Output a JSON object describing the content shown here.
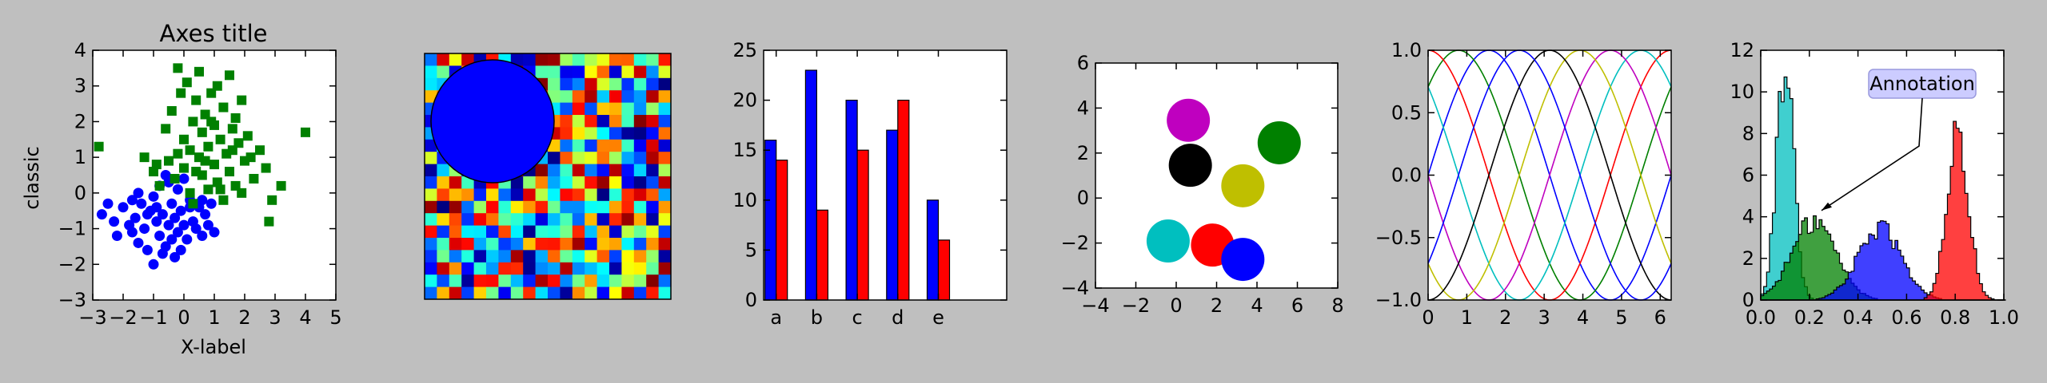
{
  "figure": {
    "background": "#bfbfbf"
  },
  "chart_data": [
    {
      "type": "scatter",
      "title": "Axes title",
      "xlabel": "X-label",
      "ylabel": "classic",
      "xlim": [
        -3,
        5
      ],
      "ylim": [
        -3,
        4
      ],
      "xticks": [
        "−3",
        "−2",
        "−1",
        "0",
        "1",
        "2",
        "3",
        "4",
        "5"
      ],
      "yticks": [
        "−3",
        "−2",
        "−1",
        "0",
        "1",
        "2",
        "3",
        "4"
      ],
      "grid": false,
      "series": [
        {
          "marker": "circle",
          "color": "#0000ff",
          "points": [
            [
              -2.7,
              -0.6
            ],
            [
              -2.3,
              -0.8
            ],
            [
              -2.2,
              -1.2
            ],
            [
              -2.0,
              -0.4
            ],
            [
              -1.8,
              -0.9
            ],
            [
              -1.7,
              -0.2
            ],
            [
              -1.6,
              -0.7
            ],
            [
              -1.5,
              -1.4
            ],
            [
              -1.4,
              -0.3
            ],
            [
              -1.3,
              -1.0
            ],
            [
              -1.2,
              -1.6
            ],
            [
              -1.1,
              -0.5
            ],
            [
              -1.0,
              -2.0
            ],
            [
              -1.0,
              -0.1
            ],
            [
              -0.9,
              -0.8
            ],
            [
              -0.8,
              -1.2
            ],
            [
              -0.8,
              0.2
            ],
            [
              -0.7,
              -0.6
            ],
            [
              -0.6,
              -1.5
            ],
            [
              -0.6,
              0.5
            ],
            [
              -0.5,
              -0.9
            ],
            [
              -0.4,
              -0.3
            ],
            [
              -0.4,
              -1.3
            ],
            [
              -0.3,
              -0.7
            ],
            [
              -0.2,
              0.1
            ],
            [
              -0.2,
              -1.1
            ],
            [
              -0.1,
              -0.5
            ],
            [
              0.0,
              -0.9
            ],
            [
              0.0,
              0.4
            ],
            [
              0.1,
              -1.3
            ],
            [
              0.2,
              -0.2
            ],
            [
              0.3,
              -0.8
            ],
            [
              0.4,
              -1.0
            ],
            [
              0.5,
              -0.4
            ],
            [
              0.6,
              -1.2
            ],
            [
              0.7,
              -0.6
            ],
            [
              0.8,
              -0.9
            ],
            [
              0.9,
              -0.3
            ],
            [
              1.0,
              -1.1
            ],
            [
              -1.5,
              0.0
            ],
            [
              -0.9,
              -0.4
            ],
            [
              -0.3,
              -1.8
            ],
            [
              -1.2,
              -0.6
            ],
            [
              0.2,
              -0.4
            ],
            [
              -0.5,
              0.3
            ],
            [
              -1.7,
              -1.1
            ],
            [
              -0.1,
              -1.6
            ],
            [
              0.6,
              -0.2
            ],
            [
              -2.5,
              -0.3
            ],
            [
              -0.7,
              -1.7
            ]
          ]
        },
        {
          "marker": "square",
          "color": "#008000",
          "points": [
            [
              -2.8,
              1.3
            ],
            [
              -1.3,
              1.0
            ],
            [
              -1.0,
              0.6
            ],
            [
              -0.8,
              0.2
            ],
            [
              -0.6,
              1.8
            ],
            [
              -0.5,
              0.9
            ],
            [
              -0.4,
              2.3
            ],
            [
              -0.3,
              0.4
            ],
            [
              -0.2,
              3.5
            ],
            [
              -0.1,
              2.8
            ],
            [
              0.0,
              1.5
            ],
            [
              0.0,
              0.7
            ],
            [
              0.1,
              3.1
            ],
            [
              0.2,
              1.2
            ],
            [
              0.3,
              2.0
            ],
            [
              0.3,
              -0.3
            ],
            [
              0.4,
              2.6
            ],
            [
              0.5,
              1.0
            ],
            [
              0.5,
              3.4
            ],
            [
              0.6,
              0.5
            ],
            [
              0.6,
              1.7
            ],
            [
              0.7,
              2.2
            ],
            [
              0.8,
              0.1
            ],
            [
              0.8,
              1.3
            ],
            [
              0.9,
              2.8
            ],
            [
              1.0,
              0.8
            ],
            [
              1.0,
              1.9
            ],
            [
              1.1,
              3.0
            ],
            [
              1.1,
              0.3
            ],
            [
              1.2,
              1.5
            ],
            [
              1.3,
              2.4
            ],
            [
              1.3,
              -0.2
            ],
            [
              1.4,
              1.1
            ],
            [
              1.5,
              3.3
            ],
            [
              1.5,
              0.6
            ],
            [
              1.6,
              1.8
            ],
            [
              1.7,
              2.1
            ],
            [
              1.7,
              0.2
            ],
            [
              1.8,
              1.4
            ],
            [
              1.9,
              2.6
            ],
            [
              2.0,
              0.9
            ],
            [
              2.1,
              1.6
            ],
            [
              2.3,
              0.4
            ],
            [
              2.5,
              1.2
            ],
            [
              2.7,
              0.7
            ],
            [
              2.9,
              -0.2
            ],
            [
              3.2,
              0.2
            ],
            [
              4.0,
              1.7
            ],
            [
              2.8,
              -0.8
            ],
            [
              1.2,
              0.1
            ],
            [
              0.4,
              0.6
            ],
            [
              -0.2,
              1.1
            ],
            [
              1.9,
              0.0
            ],
            [
              0.9,
              2.0
            ],
            [
              2.2,
              1.0
            ],
            [
              -0.9,
              0.8
            ],
            [
              1.6,
              1.2
            ],
            [
              0.7,
              0.9
            ],
            [
              0.2,
              0.0
            ]
          ]
        }
      ]
    },
    {
      "type": "heatmap",
      "colormap": "jet",
      "grid_size": [
        20,
        20
      ],
      "seed": 7,
      "overlay_circle": {
        "color": "#0000ff"
      }
    },
    {
      "type": "bar",
      "categories": [
        "a",
        "b",
        "c",
        "d",
        "e"
      ],
      "ylim": [
        0,
        25
      ],
      "yticks": [
        "0",
        "5",
        "10",
        "15",
        "20",
        "25"
      ],
      "series": [
        {
          "color": "#0000ff",
          "values": [
            16,
            23,
            20,
            17,
            10
          ]
        },
        {
          "color": "#ff0000",
          "values": [
            14,
            9,
            15,
            20,
            6
          ]
        }
      ]
    },
    {
      "type": "scatter",
      "xlim": [
        -4,
        8
      ],
      "ylim": [
        -5,
        6
      ],
      "xticks": [
        "−4",
        "−2",
        "0",
        "2",
        "4",
        "6",
        "8"
      ],
      "yticks": [
        "−4",
        "−2",
        "0",
        "2",
        "4",
        "6"
      ],
      "circles": [
        {
          "x": 0.6,
          "y": 3.2,
          "color": "#bf00bf"
        },
        {
          "x": 5.1,
          "y": 2.1,
          "color": "#008000"
        },
        {
          "x": 0.7,
          "y": 1.0,
          "color": "#000000"
        },
        {
          "x": 3.3,
          "y": 0.0,
          "color": "#bfbf00"
        },
        {
          "x": -0.4,
          "y": -2.7,
          "color": "#00bfbf"
        },
        {
          "x": 1.8,
          "y": -2.9,
          "color": "#ff0000"
        },
        {
          "x": 3.3,
          "y": -3.6,
          "color": "#0000ff"
        }
      ]
    },
    {
      "type": "line",
      "xlim": [
        0,
        6.283
      ],
      "ylim": [
        -1,
        1
      ],
      "xticks": [
        "0",
        "1",
        "2",
        "3",
        "4",
        "5",
        "6"
      ],
      "yticks": [
        "−1.0",
        "−0.5",
        "0.0",
        "0.5",
        "1.0"
      ],
      "function": "sin(x + phase)",
      "series": [
        {
          "phase": 0.0,
          "color": "#0000ff"
        },
        {
          "phase": 0.785,
          "color": "#008000"
        },
        {
          "phase": 1.571,
          "color": "#ff0000"
        },
        {
          "phase": 2.356,
          "color": "#00bfbf"
        },
        {
          "phase": 3.142,
          "color": "#bf00bf"
        },
        {
          "phase": 3.927,
          "color": "#bfbf00"
        },
        {
          "phase": 4.712,
          "color": "#000000"
        },
        {
          "phase": 5.498,
          "color": "#0000ff"
        }
      ]
    },
    {
      "type": "area",
      "subtype": "histogram",
      "xlim": [
        0,
        1
      ],
      "ylim": [
        0,
        12
      ],
      "xticks": [
        "0.0",
        "0.2",
        "0.4",
        "0.6",
        "0.8",
        "1.0"
      ],
      "yticks": [
        "0",
        "2",
        "4",
        "6",
        "8",
        "10",
        "12"
      ],
      "series": [
        {
          "color": "#00bfbf",
          "mean": 0.1,
          "sd": 0.035,
          "peak": 11.5
        },
        {
          "color": "#008000",
          "mean": 0.22,
          "sd": 0.09,
          "peak": 3.8
        },
        {
          "color": "#0000ff",
          "mean": 0.49,
          "sd": 0.09,
          "peak": 3.4
        },
        {
          "color": "#ff0000",
          "mean": 0.81,
          "sd": 0.045,
          "peak": 8.0
        }
      ],
      "annotation": {
        "text": "Annotation",
        "x": 0.25,
        "y": 4.3
      }
    }
  ]
}
